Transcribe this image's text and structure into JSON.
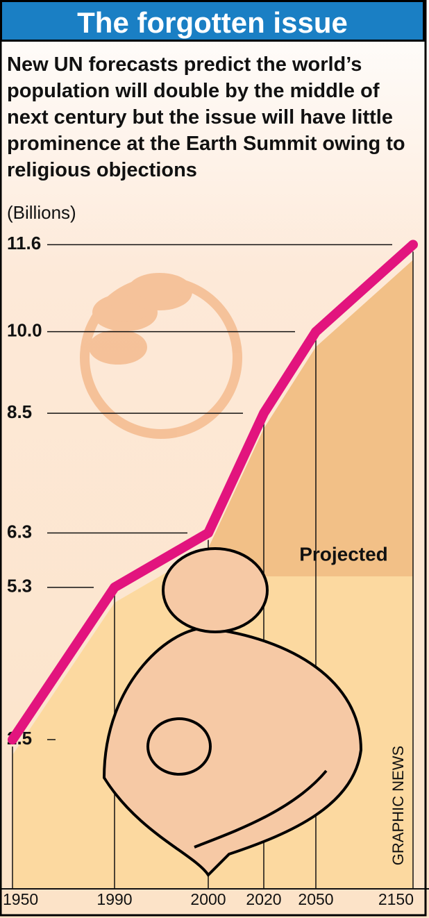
{
  "chart_data": {
    "type": "line",
    "title": "The forgotten issue",
    "subtitle": "New UN forecasts predict the world’s population will double by the middle of next century but the issue will have little prominence at the Earth Summit owing to religious objections",
    "y_label": "(Billions)",
    "annotation": "Projected",
    "source": "GRAPHIC NEWS",
    "categories": [
      "1950",
      "1990",
      "2000",
      "2020",
      "2050",
      "2150"
    ],
    "values": [
      2.5,
      5.3,
      6.3,
      8.5,
      10.0,
      11.6
    ],
    "color": "#e2147e",
    "ylim": [
      0,
      12
    ],
    "yticks": [
      2.5,
      5.3,
      6.3,
      8.5,
      {
        "value": 10,
        "label": "10.0"
      },
      11.6
    ]
  }
}
